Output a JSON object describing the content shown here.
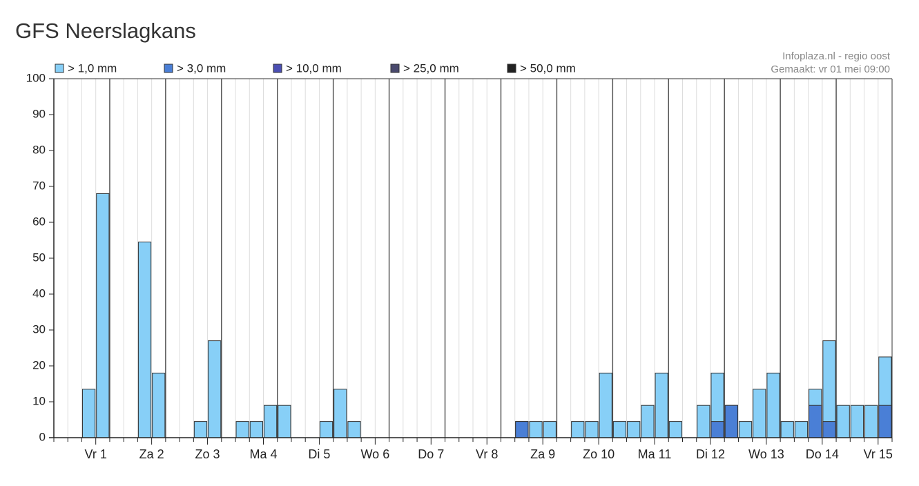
{
  "chart_data": {
    "type": "bar",
    "title": "GFS Neerslagkans",
    "source": "Infoplaza.nl - regio oost",
    "created": "Gemaakt: vr 01 mei 09:00",
    "categories": [
      null,
      null,
      "Vr 1",
      null,
      null,
      null,
      "Za 2",
      null,
      null,
      null,
      "Zo 3",
      null,
      null,
      null,
      "Ma 4",
      null,
      null,
      null,
      "Di 5",
      null,
      null,
      null,
      "Wo 6",
      null,
      null,
      null,
      "Do 7",
      null,
      null,
      null,
      "Vr 8",
      null,
      null,
      null,
      "Za 9",
      null,
      null,
      null,
      "Zo 10",
      null,
      null,
      null,
      "Ma 11",
      null,
      null,
      null,
      "Di 12",
      null,
      null,
      null,
      "Wo 13",
      null,
      null,
      null,
      "Do 14",
      null,
      null,
      null,
      "Vr 15",
      null
    ],
    "series": [
      {
        "name": "> 1,0 mm",
        "color": "#87cff7",
        "values": [
          0,
          0,
          13.5,
          68,
          0,
          0,
          54.5,
          18,
          0,
          0,
          4.5,
          27,
          0,
          4.5,
          4.5,
          9,
          9,
          0,
          0,
          4.5,
          13.5,
          4.5,
          0,
          0,
          0,
          0,
          0,
          0,
          0,
          0,
          0,
          0,
          0,
          4.5,
          4.5,
          4.5,
          0,
          4.5,
          4.5,
          18,
          4.5,
          4.5,
          9,
          18,
          4.5,
          0,
          9,
          18,
          9,
          4.5,
          13.5,
          18,
          4.5,
          4.5,
          13.5,
          27,
          9,
          9,
          9,
          22.5
        ]
      },
      {
        "name": "> 3,0 mm",
        "color": "#4a7fd6",
        "values": [
          0,
          0,
          0,
          0,
          0,
          0,
          0,
          0,
          0,
          0,
          0,
          0,
          0,
          0,
          0,
          0,
          0,
          0,
          0,
          0,
          0,
          0,
          0,
          0,
          0,
          0,
          0,
          0,
          0,
          0,
          0,
          0,
          0,
          4.5,
          0,
          0,
          0,
          0,
          0,
          0,
          0,
          0,
          0,
          0,
          0,
          0,
          0,
          4.5,
          9,
          0,
          0,
          0,
          0,
          0,
          9,
          4.5,
          0,
          0,
          0,
          9
        ]
      },
      {
        "name": "> 10,0 mm",
        "color": "#4b4fb3",
        "values": [
          0,
          0,
          0,
          0,
          0,
          0,
          0,
          0,
          0,
          0,
          0,
          0,
          0,
          0,
          0,
          0,
          0,
          0,
          0,
          0,
          0,
          0,
          0,
          0,
          0,
          0,
          0,
          0,
          0,
          0,
          0,
          0,
          0,
          0,
          0,
          0,
          0,
          0,
          0,
          0,
          0,
          0,
          0,
          0,
          0,
          0,
          0,
          0,
          0,
          0,
          0,
          0,
          0,
          0,
          0,
          0,
          0,
          0,
          0,
          0
        ]
      },
      {
        "name": "> 25,0 mm",
        "color": "#4a4a6e",
        "values": [
          0,
          0,
          0,
          0,
          0,
          0,
          0,
          0,
          0,
          0,
          0,
          0,
          0,
          0,
          0,
          0,
          0,
          0,
          0,
          0,
          0,
          0,
          0,
          0,
          0,
          0,
          0,
          0,
          0,
          0,
          0,
          0,
          0,
          0,
          0,
          0,
          0,
          0,
          0,
          0,
          0,
          0,
          0,
          0,
          0,
          0,
          0,
          0,
          0,
          0,
          0,
          0,
          0,
          0,
          0,
          0,
          0,
          0,
          0,
          0
        ]
      },
      {
        "name": "> 50,0 mm",
        "color": "#222222",
        "values": [
          0,
          0,
          0,
          0,
          0,
          0,
          0,
          0,
          0,
          0,
          0,
          0,
          0,
          0,
          0,
          0,
          0,
          0,
          0,
          0,
          0,
          0,
          0,
          0,
          0,
          0,
          0,
          0,
          0,
          0,
          0,
          0,
          0,
          0,
          0,
          0,
          0,
          0,
          0,
          0,
          0,
          0,
          0,
          0,
          0,
          0,
          0,
          0,
          0,
          0,
          0,
          0,
          0,
          0,
          0,
          0,
          0,
          0,
          0,
          0
        ]
      }
    ],
    "ylim": [
      0,
      100
    ],
    "yticks": [
      0,
      10,
      20,
      30,
      40,
      50,
      60,
      70,
      80,
      90,
      100
    ],
    "grid": true
  }
}
